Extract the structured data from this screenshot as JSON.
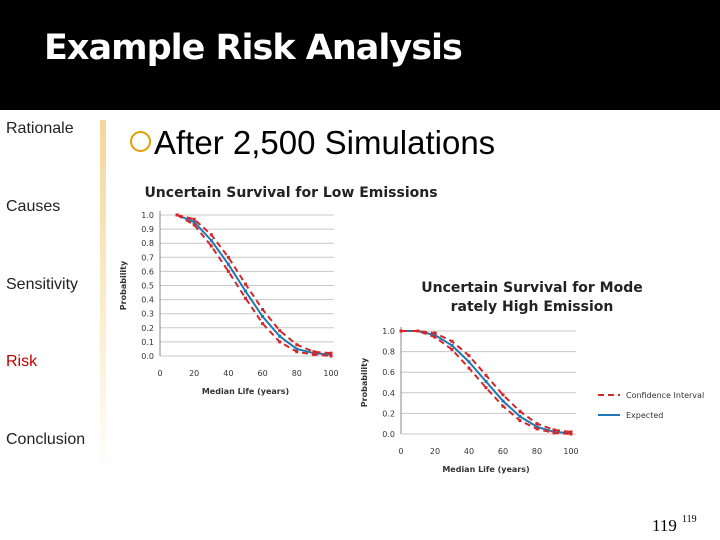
{
  "slide": {
    "title": "Example Risk Analysis",
    "bullet": "After 2,500 Simulations",
    "page_number": "119",
    "page_superscript": "119"
  },
  "nav": {
    "rationale": "Rationale",
    "causes": "Causes",
    "sensitivity": "Sensitivity",
    "risk": "Risk",
    "conclusion": "Conclusion"
  },
  "colors": {
    "header_bg": "#000000",
    "accent": "#e0a000",
    "nav_active": "#c00000",
    "expected": "#1f77b4",
    "confidence": "#d62728"
  },
  "chart_data": [
    {
      "type": "line",
      "title": "Uncertain Survival for Low Emissions",
      "xlabel": "Median Life (years)",
      "ylabel": "Probability",
      "xlim": [
        0,
        100
      ],
      "ylim": [
        0,
        1
      ],
      "xticks": [
        "0",
        "20",
        "40",
        "60",
        "80",
        "100"
      ],
      "yticks": [
        "0.0",
        "0.1",
        "0.2",
        "0.3",
        "0.4",
        "0.5",
        "0.6",
        "0.7",
        "0.8",
        "0.9",
        "1.0"
      ],
      "grid": true,
      "x": [
        10,
        20,
        30,
        40,
        50,
        60,
        70,
        80,
        90,
        100
      ],
      "series": [
        {
          "name": "Expected",
          "values": [
            1.0,
            0.95,
            0.82,
            0.65,
            0.46,
            0.28,
            0.14,
            0.05,
            0.02,
            0.01
          ]
        },
        {
          "name": "Confidence Interval",
          "values": [
            1.0,
            0.97,
            0.86,
            0.7,
            0.51,
            0.33,
            0.18,
            0.08,
            0.03,
            0.02
          ]
        },
        {
          "name": "Confidence Interval",
          "values": [
            1.0,
            0.93,
            0.78,
            0.6,
            0.41,
            0.23,
            0.1,
            0.03,
            0.01,
            0.0
          ]
        }
      ]
    },
    {
      "type": "line",
      "title": "Uncertain Survival for Moderately High Emissions",
      "xlabel": "Median Life (years)",
      "ylabel": "Probability",
      "xlim": [
        0,
        100
      ],
      "ylim": [
        0,
        1
      ],
      "xticks": [
        "0",
        "20",
        "40",
        "60",
        "80",
        "100"
      ],
      "yticks": [
        "0.0",
        "0.2",
        "0.4",
        "0.6",
        "0.8",
        "1.0"
      ],
      "grid": true,
      "legend": "right",
      "x": [
        0,
        10,
        20,
        30,
        40,
        50,
        60,
        70,
        80,
        90,
        100
      ],
      "series": [
        {
          "name": "Expected",
          "values": [
            1.0,
            1.0,
            0.96,
            0.86,
            0.7,
            0.51,
            0.32,
            0.17,
            0.07,
            0.02,
            0.01
          ]
        },
        {
          "name": "Confidence Interval",
          "values": [
            1.0,
            1.0,
            0.98,
            0.9,
            0.76,
            0.57,
            0.38,
            0.22,
            0.1,
            0.04,
            0.02
          ]
        },
        {
          "name": "Confidence Interval",
          "values": [
            1.0,
            1.0,
            0.94,
            0.82,
            0.64,
            0.45,
            0.27,
            0.13,
            0.05,
            0.01,
            0.0
          ]
        }
      ]
    }
  ]
}
